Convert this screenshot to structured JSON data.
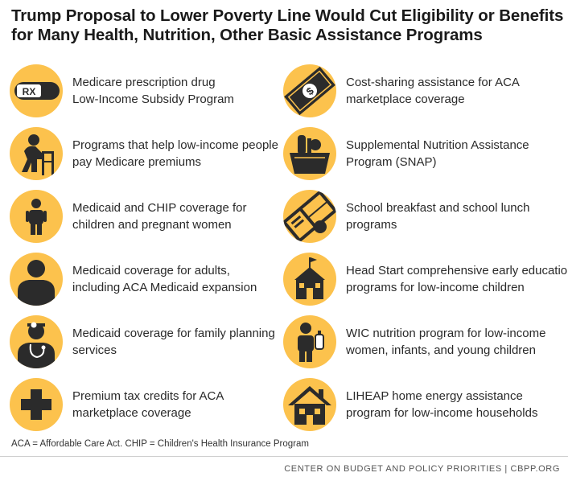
{
  "title": {
    "line1": "Trump Proposal to Lower Poverty Line Would Cut Eligibility or Benefits",
    "line2": "for Many Health, Nutrition, Other Basic Assistance Programs"
  },
  "icon_color": "#fcc24d",
  "icon_ink": "#2b2b2b",
  "left_items": [
    {
      "icon": "prescription-pill-icon",
      "icon_text": "RX",
      "line1": "Medicare prescription drug",
      "line2": "Low-Income Subsidy Program"
    },
    {
      "icon": "elderly-person-walker-icon",
      "line1": "Programs that help low-income people",
      "line2": "pay Medicare premiums"
    },
    {
      "icon": "child-icon",
      "line1": "Medicaid and CHIP coverage for",
      "line2": "children and pregnant women"
    },
    {
      "icon": "adult-person-icon",
      "line1": "Medicaid coverage for adults,",
      "line2": "including ACA Medicaid expansion"
    },
    {
      "icon": "doctor-icon",
      "line1": "Medicaid coverage for family planning",
      "line2": "services"
    },
    {
      "icon": "medical-cross-icon",
      "line1": "Premium tax credits for ACA",
      "line2": "marketplace coverage"
    }
  ],
  "right_items": [
    {
      "icon": "money-bill-icon",
      "line1": "Cost-sharing assistance for ACA",
      "line2": "marketplace coverage"
    },
    {
      "icon": "grocery-bag-icon",
      "line1": "Supplemental Nutrition Assistance",
      "line2": "Program (SNAP)"
    },
    {
      "icon": "lunch-tray-icon",
      "line1": "School breakfast and school lunch",
      "line2": "programs"
    },
    {
      "icon": "schoolhouse-icon",
      "line1": "Head Start comprehensive early education",
      "line2": "programs for low-income children"
    },
    {
      "icon": "child-with-bottle-icon",
      "line1": "WIC nutrition program for low-income",
      "line2": "women, infants, and young children"
    },
    {
      "icon": "house-icon",
      "line1": "LIHEAP home energy assistance",
      "line2": "program for low-income households"
    }
  ],
  "footnote": "ACA = Affordable Care Act. CHIP = Children's Health Insurance Program",
  "credit": "CENTER ON BUDGET AND POLICY PRIORITIES | CBPP.ORG"
}
